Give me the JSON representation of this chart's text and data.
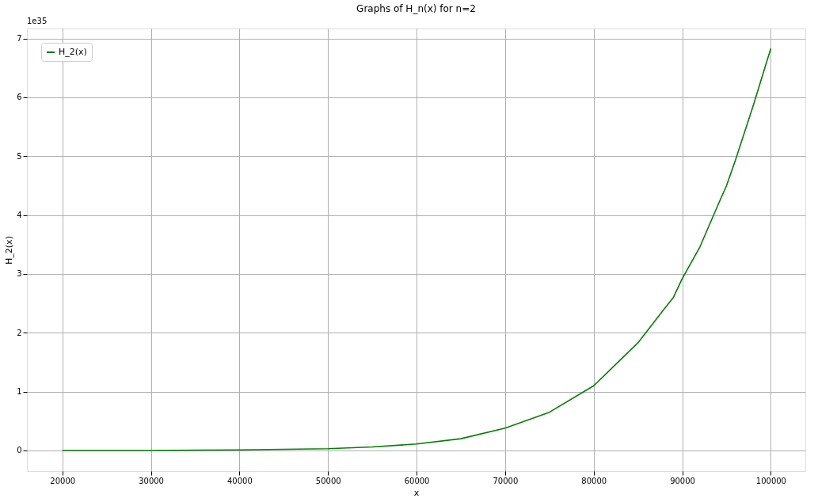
{
  "chart_data": {
    "type": "line",
    "title": "Graphs of H_n(x) for n=2",
    "xlabel": "x",
    "ylabel": "H_2(x)",
    "annotations": [
      "1e35"
    ],
    "x": [
      20000,
      30000,
      40000,
      45000,
      50000,
      55000,
      60000,
      65000,
      70000,
      75000,
      80000,
      85000,
      88000,
      89000,
      90000,
      92000,
      94000,
      95000,
      96000,
      98000,
      100000
    ],
    "series": [
      {
        "name": "H_2(x)",
        "color": "#008000",
        "values": [
          0.0,
          0.0,
          0.01,
          0.02,
          0.03,
          0.06,
          0.11,
          0.2,
          0.38,
          0.65,
          1.1,
          1.83,
          2.41,
          2.6,
          2.92,
          3.46,
          4.16,
          4.5,
          4.93,
          5.85,
          6.83
        ]
      }
    ],
    "xlim": [
      16000,
      103900
    ],
    "ylim": [
      -0.35,
      7.17
    ],
    "xticks": [
      20000,
      30000,
      40000,
      50000,
      60000,
      70000,
      80000,
      90000,
      100000
    ],
    "yticks": [
      0,
      1,
      2,
      3,
      4,
      5,
      6,
      7
    ],
    "grid": true,
    "legend": "top left",
    "line_style": "solid",
    "marker": "none"
  }
}
